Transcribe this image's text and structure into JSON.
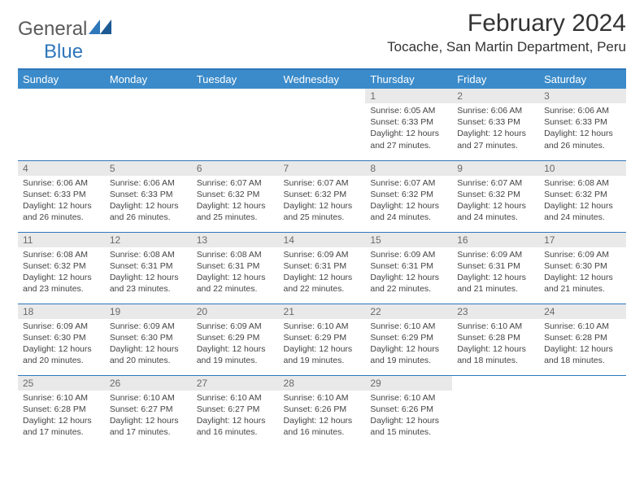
{
  "brand": {
    "part1": "General",
    "part2": "Blue"
  },
  "title": "February 2024",
  "location": "Tocache, San Martin Department, Peru",
  "colors": {
    "header_bg": "#3b8bca",
    "header_text": "#ffffff",
    "rule": "#2f77bb",
    "daynum_bg": "#e9e9e9",
    "daynum_text": "#6a6a6a",
    "body_text": "#444444",
    "brand_gray": "#5a5a5a",
    "brand_blue": "#2f77bb"
  },
  "weekdays": [
    "Sunday",
    "Monday",
    "Tuesday",
    "Wednesday",
    "Thursday",
    "Friday",
    "Saturday"
  ],
  "weeks": [
    [
      null,
      null,
      null,
      null,
      {
        "n": "1",
        "sunrise": "6:05 AM",
        "sunset": "6:33 PM",
        "dl": "12 hours and 27 minutes."
      },
      {
        "n": "2",
        "sunrise": "6:06 AM",
        "sunset": "6:33 PM",
        "dl": "12 hours and 27 minutes."
      },
      {
        "n": "3",
        "sunrise": "6:06 AM",
        "sunset": "6:33 PM",
        "dl": "12 hours and 26 minutes."
      }
    ],
    [
      {
        "n": "4",
        "sunrise": "6:06 AM",
        "sunset": "6:33 PM",
        "dl": "12 hours and 26 minutes."
      },
      {
        "n": "5",
        "sunrise": "6:06 AM",
        "sunset": "6:33 PM",
        "dl": "12 hours and 26 minutes."
      },
      {
        "n": "6",
        "sunrise": "6:07 AM",
        "sunset": "6:32 PM",
        "dl": "12 hours and 25 minutes."
      },
      {
        "n": "7",
        "sunrise": "6:07 AM",
        "sunset": "6:32 PM",
        "dl": "12 hours and 25 minutes."
      },
      {
        "n": "8",
        "sunrise": "6:07 AM",
        "sunset": "6:32 PM",
        "dl": "12 hours and 24 minutes."
      },
      {
        "n": "9",
        "sunrise": "6:07 AM",
        "sunset": "6:32 PM",
        "dl": "12 hours and 24 minutes."
      },
      {
        "n": "10",
        "sunrise": "6:08 AM",
        "sunset": "6:32 PM",
        "dl": "12 hours and 24 minutes."
      }
    ],
    [
      {
        "n": "11",
        "sunrise": "6:08 AM",
        "sunset": "6:32 PM",
        "dl": "12 hours and 23 minutes."
      },
      {
        "n": "12",
        "sunrise": "6:08 AM",
        "sunset": "6:31 PM",
        "dl": "12 hours and 23 minutes."
      },
      {
        "n": "13",
        "sunrise": "6:08 AM",
        "sunset": "6:31 PM",
        "dl": "12 hours and 22 minutes."
      },
      {
        "n": "14",
        "sunrise": "6:09 AM",
        "sunset": "6:31 PM",
        "dl": "12 hours and 22 minutes."
      },
      {
        "n": "15",
        "sunrise": "6:09 AM",
        "sunset": "6:31 PM",
        "dl": "12 hours and 22 minutes."
      },
      {
        "n": "16",
        "sunrise": "6:09 AM",
        "sunset": "6:31 PM",
        "dl": "12 hours and 21 minutes."
      },
      {
        "n": "17",
        "sunrise": "6:09 AM",
        "sunset": "6:30 PM",
        "dl": "12 hours and 21 minutes."
      }
    ],
    [
      {
        "n": "18",
        "sunrise": "6:09 AM",
        "sunset": "6:30 PM",
        "dl": "12 hours and 20 minutes."
      },
      {
        "n": "19",
        "sunrise": "6:09 AM",
        "sunset": "6:30 PM",
        "dl": "12 hours and 20 minutes."
      },
      {
        "n": "20",
        "sunrise": "6:09 AM",
        "sunset": "6:29 PM",
        "dl": "12 hours and 19 minutes."
      },
      {
        "n": "21",
        "sunrise": "6:10 AM",
        "sunset": "6:29 PM",
        "dl": "12 hours and 19 minutes."
      },
      {
        "n": "22",
        "sunrise": "6:10 AM",
        "sunset": "6:29 PM",
        "dl": "12 hours and 19 minutes."
      },
      {
        "n": "23",
        "sunrise": "6:10 AM",
        "sunset": "6:28 PM",
        "dl": "12 hours and 18 minutes."
      },
      {
        "n": "24",
        "sunrise": "6:10 AM",
        "sunset": "6:28 PM",
        "dl": "12 hours and 18 minutes."
      }
    ],
    [
      {
        "n": "25",
        "sunrise": "6:10 AM",
        "sunset": "6:28 PM",
        "dl": "12 hours and 17 minutes."
      },
      {
        "n": "26",
        "sunrise": "6:10 AM",
        "sunset": "6:27 PM",
        "dl": "12 hours and 17 minutes."
      },
      {
        "n": "27",
        "sunrise": "6:10 AM",
        "sunset": "6:27 PM",
        "dl": "12 hours and 16 minutes."
      },
      {
        "n": "28",
        "sunrise": "6:10 AM",
        "sunset": "6:26 PM",
        "dl": "12 hours and 16 minutes."
      },
      {
        "n": "29",
        "sunrise": "6:10 AM",
        "sunset": "6:26 PM",
        "dl": "12 hours and 15 minutes."
      },
      null,
      null
    ]
  ],
  "labels": {
    "sunrise": "Sunrise:",
    "sunset": "Sunset:",
    "daylight": "Daylight:"
  }
}
